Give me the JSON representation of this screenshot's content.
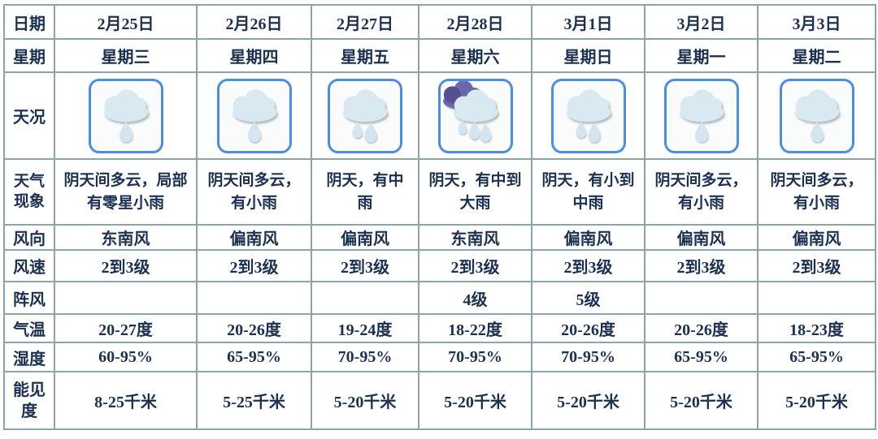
{
  "table": {
    "row_labels": [
      "日期",
      "星期",
      "天况",
      "天气现象",
      "风向",
      "风速",
      "阵风",
      "气温",
      "湿度",
      "能见度"
    ],
    "days": [
      {
        "date": "2月25日",
        "weekday": "星期三",
        "icon": "light-rain-icon",
        "phenomenon": "阴天间多云，局部有零星小雨",
        "wind_direction": "东南风",
        "wind_speed": "2到3级",
        "gust": "",
        "temperature": "20-27度",
        "humidity": "60-95%",
        "visibility": "8-25千米"
      },
      {
        "date": "2月26日",
        "weekday": "星期四",
        "icon": "light-rain-icon",
        "phenomenon": "阴天间多云，有小雨",
        "wind_direction": "偏南风",
        "wind_speed": "2到3级",
        "gust": "",
        "temperature": "20-26度",
        "humidity": "65-95%",
        "visibility": "5-25千米"
      },
      {
        "date": "2月27日",
        "weekday": "星期五",
        "icon": "moderate-rain-icon",
        "phenomenon": "阴天，有中雨",
        "wind_direction": "偏南风",
        "wind_speed": "2到3级",
        "gust": "",
        "temperature": "19-24度",
        "humidity": "70-95%",
        "visibility": "5-20千米"
      },
      {
        "date": "2月28日",
        "weekday": "星期六",
        "icon": "heavy-rain-icon",
        "phenomenon": "阴天，有中到大雨",
        "wind_direction": "东南风",
        "wind_speed": "2到3级",
        "gust": "4级",
        "temperature": "18-22度",
        "humidity": "70-95%",
        "visibility": "5-20千米"
      },
      {
        "date": "3月1日",
        "weekday": "星期日",
        "icon": "moderate-rain-icon",
        "phenomenon": "阴天，有小到中雨",
        "wind_direction": "偏南风",
        "wind_speed": "2到3级",
        "gust": "5级",
        "temperature": "20-26度",
        "humidity": "70-95%",
        "visibility": "5-20千米"
      },
      {
        "date": "3月2日",
        "weekday": "星期一",
        "icon": "light-rain-icon",
        "phenomenon": "阴天间多云，有小雨",
        "wind_direction": "偏南风",
        "wind_speed": "2到3级",
        "gust": "",
        "temperature": "20-26度",
        "humidity": "65-95%",
        "visibility": "5-20千米"
      },
      {
        "date": "3月3日",
        "weekday": "星期二",
        "icon": "light-rain-icon",
        "phenomenon": "阴天间多云，有小雨",
        "wind_direction": "偏南风",
        "wind_speed": "2到3级",
        "gust": "",
        "temperature": "18-23度",
        "humidity": "65-95%",
        "visibility": "5-20千米"
      }
    ]
  },
  "colors": {
    "grid_border": "#8aa6aa",
    "text": "#1c3152",
    "icon_border": "#4a8ee4",
    "cloud_fill": "#d8e9f1",
    "dark_cloud_fill": "#6b67a8",
    "drop_fill": "#d3e6ef"
  }
}
